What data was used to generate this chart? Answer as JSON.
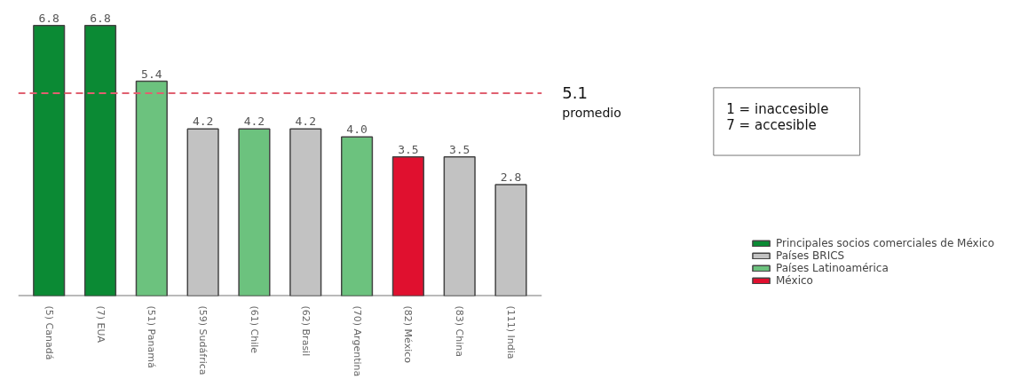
{
  "chart_data": {
    "type": "bar",
    "categories": [
      "(5) Canadá",
      "(7) EUA",
      "(51) Panamá",
      "(59) Sudáfrica",
      "(61) Chile",
      "(62) Brasil",
      "(70) Argentina",
      "(82) México",
      "(83) China",
      "(111) India"
    ],
    "series": [
      {
        "name": "Principales socios comerciales de México",
        "color": "#0b8a34",
        "values": [
          6.8,
          6.8,
          null,
          null,
          null,
          null,
          null,
          null,
          null,
          null
        ],
        "value_labels": [
          "6.8",
          "6.8",
          null,
          null,
          null,
          null,
          null,
          null,
          null,
          null
        ]
      },
      {
        "name": "Países BRICS",
        "color": "#c2c2c2",
        "values": [
          null,
          null,
          null,
          4.2,
          null,
          4.2,
          null,
          null,
          3.5,
          2.8
        ],
        "value_labels": [
          null,
          null,
          null,
          "4.2",
          null,
          "4.2",
          null,
          null,
          "3.5",
          "2.8"
        ]
      },
      {
        "name": "Países Latinoamérica",
        "color": "#6cc27e",
        "values": [
          null,
          null,
          5.4,
          null,
          4.2,
          null,
          4.0,
          null,
          null,
          null
        ],
        "value_labels": [
          null,
          null,
          "5.4",
          null,
          "4.2",
          null,
          "4.0",
          null,
          null,
          null
        ]
      },
      {
        "name": "México",
        "color": "#e0102f",
        "values": [
          null,
          null,
          null,
          null,
          null,
          null,
          null,
          3.5,
          null,
          null
        ],
        "value_labels": [
          null,
          null,
          null,
          null,
          null,
          null,
          null,
          "3.5",
          null,
          null
        ]
      }
    ],
    "ref_lines": [
      {
        "axis": "y",
        "value": 5.1,
        "label": "5.1",
        "color": "#e06070",
        "line_style": "dashed"
      }
    ],
    "annotations": [
      "promedio",
      "1 = inaccesible",
      "7 = accesible"
    ],
    "legend": "right",
    "grid": false
  }
}
